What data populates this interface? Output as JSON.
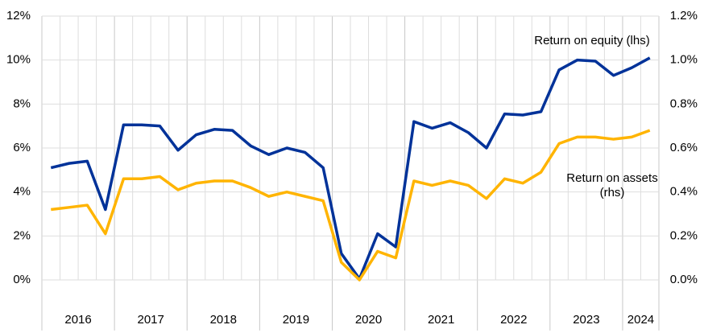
{
  "chart_data": {
    "type": "line",
    "categories": [
      "2016",
      null,
      null,
      null,
      "2017",
      null,
      null,
      null,
      "2018",
      null,
      null,
      null,
      "2019",
      null,
      null,
      null,
      "2020",
      null,
      null,
      null,
      "2021",
      null,
      null,
      null,
      "2022",
      null,
      null,
      null,
      "2023",
      null,
      null,
      null,
      "2024",
      null
    ],
    "series": [
      {
        "name": "Return on equity (lhs)",
        "color": "#003299",
        "values": [
          5.1,
          5.3,
          5.4,
          3.2,
          7.05,
          7.05,
          7.0,
          5.9,
          6.6,
          6.85,
          6.8,
          6.1,
          5.7,
          6.0,
          5.8,
          5.1,
          1.2,
          0.05,
          2.1,
          1.5,
          7.2,
          6.9,
          7.15,
          6.7,
          6.0,
          7.55,
          7.5,
          7.65,
          9.55,
          10.0,
          9.95,
          9.3,
          9.65,
          10.1
        ]
      },
      {
        "name": "Return on assets (rhs)",
        "color": "#FFB400",
        "axis": "y2",
        "values": [
          0.32,
          0.33,
          0.34,
          0.21,
          0.46,
          0.46,
          0.47,
          0.41,
          0.44,
          0.45,
          0.45,
          0.42,
          0.38,
          0.4,
          0.38,
          0.36,
          0.08,
          0.0,
          0.13,
          0.1,
          0.45,
          0.43,
          0.45,
          0.43,
          0.37,
          0.46,
          0.44,
          0.49,
          0.62,
          0.65,
          0.65,
          0.64,
          0.65,
          0.68
        ]
      }
    ],
    "ylim": [
      -2.3,
      12
    ],
    "yticks": [
      {
        "value": 0,
        "label": "0%"
      },
      {
        "value": 2,
        "label": "2%"
      },
      {
        "value": 4,
        "label": "4%"
      },
      {
        "value": 6,
        "label": "6%"
      },
      {
        "value": 8,
        "label": "8%"
      },
      {
        "value": 10,
        "label": "10%"
      },
      {
        "value": 12,
        "label": "12%"
      }
    ],
    "y2lim": [
      -0.23,
      1.2
    ],
    "y2ticks": [
      {
        "value": 0,
        "label": "0.0%"
      },
      {
        "value": 0.2,
        "label": "0.2%"
      },
      {
        "value": 0.4,
        "label": "0.4%"
      },
      {
        "value": 0.6,
        "label": "0.6%"
      },
      {
        "value": 0.8,
        "label": "0.8%"
      },
      {
        "value": 1.0,
        "label": "1.0%"
      },
      {
        "value": 1.2,
        "label": "1.2%"
      }
    ],
    "grid": true
  }
}
